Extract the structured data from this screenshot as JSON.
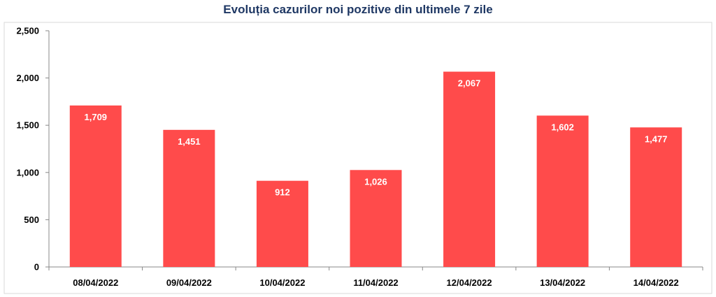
{
  "chart_data": {
    "type": "bar",
    "title": "Evoluția cazurilor noi pozitive din ultimele 7 zile",
    "categories": [
      "08/04/2022",
      "09/04/2022",
      "10/04/2022",
      "11/04/2022",
      "12/04/2022",
      "13/04/2022",
      "14/04/2022"
    ],
    "values": [
      1709,
      1451,
      912,
      1026,
      2067,
      1602,
      1477
    ],
    "value_labels": [
      "1,709",
      "1,451",
      "912",
      "1,026",
      "2,067",
      "1,602",
      "1,477"
    ],
    "yticks": [
      0,
      500,
      1000,
      1500,
      2000,
      2500
    ],
    "ytick_labels": [
      "0",
      "500",
      "1,000",
      "1,500",
      "2,000",
      "2,500"
    ],
    "ylim": [
      0,
      2500
    ],
    "xlabel": "",
    "ylabel": "",
    "grid": false,
    "bar_color": "#ff4b4b",
    "title_color": "#1f3864"
  }
}
